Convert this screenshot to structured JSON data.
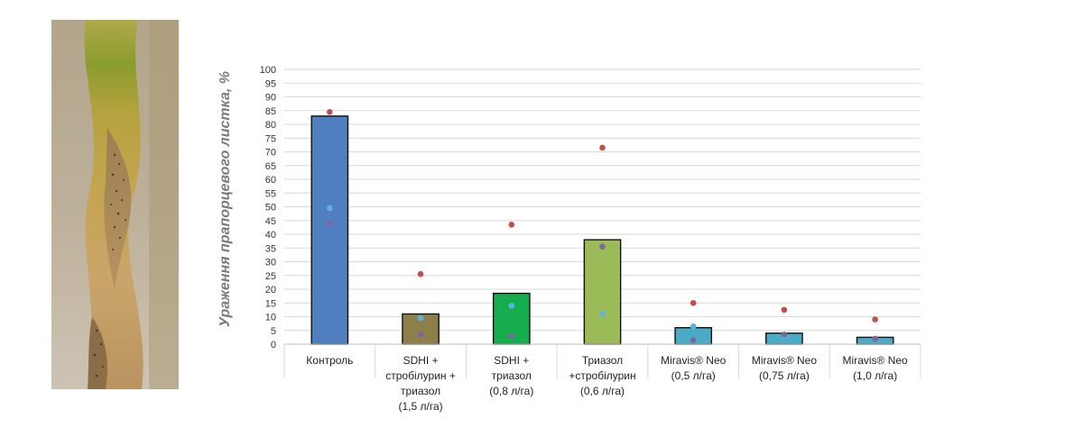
{
  "photo": {
    "subject": "leaf-photo"
  },
  "chart_data": {
    "type": "bar",
    "ylabel": "Ураження прапорцевого листка, %",
    "ylim": [
      0,
      100
    ],
    "yticks": [
      0,
      5,
      10,
      15,
      20,
      25,
      30,
      35,
      40,
      45,
      50,
      55,
      60,
      65,
      70,
      75,
      80,
      85,
      90,
      95,
      100
    ],
    "grid": true,
    "categories": [
      [
        "Контроль"
      ],
      [
        "SDHI +",
        "стробілурин +",
        "триазол",
        "(1,5 л/га)"
      ],
      [
        "SDHI +",
        "триазол",
        "(0,8 л/га)"
      ],
      [
        "Триазол",
        "+стробілурин",
        "(0,6 л/га)"
      ],
      [
        "Miravis® Neo",
        "(0,5 л/га)"
      ],
      [
        "Miravis® Neo",
        "(0,75 л/га)"
      ],
      [
        "Miravis® Neo",
        "(1,0 л/га)"
      ]
    ],
    "bar_colors": [
      "#4f7fbf",
      "#8c7f4a",
      "#15ad4e",
      "#9bbb59",
      "#4babc6",
      "#4babc6",
      "#4babc6"
    ],
    "values": [
      83,
      11,
      18.5,
      38,
      6,
      4,
      2.5
    ],
    "series": [
      {
        "color": "#c0504d",
        "values": [
          84.5,
          25.5,
          43.5,
          71.5,
          15,
          12.5,
          9
        ]
      },
      {
        "color": "#5ab4e0",
        "values": [
          49.5,
          9.5,
          14,
          11,
          6.5,
          3,
          2
        ]
      },
      {
        "color": "#8064a2",
        "values": [
          44,
          3.5,
          3,
          35.5,
          1.5,
          3.5,
          2
        ]
      }
    ]
  }
}
